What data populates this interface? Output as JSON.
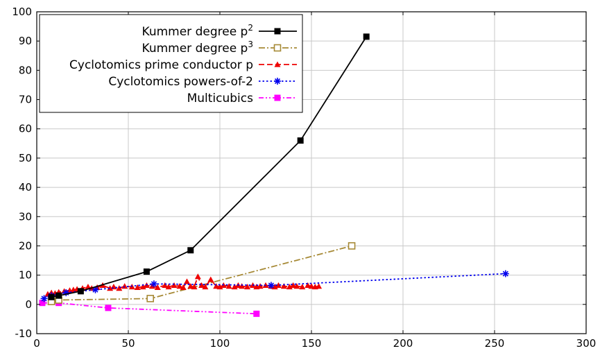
{
  "chart_data": {
    "type": "line",
    "title": "",
    "xlabel": "",
    "ylabel": "",
    "xlim": [
      0,
      300
    ],
    "ylim": [
      -10,
      100
    ],
    "xticks": [
      0,
      50,
      100,
      150,
      200,
      250,
      300
    ],
    "yticks": [
      -10,
      0,
      10,
      20,
      30,
      40,
      50,
      60,
      70,
      80,
      90,
      100
    ],
    "grid": true,
    "legend_position": "top-left",
    "series": [
      {
        "name": "Kummer degree p",
        "name_sup": "2",
        "color": "#000000",
        "dash": "solid",
        "marker": "square-filled",
        "x": [
          8,
          12,
          24,
          60,
          84,
          144,
          180
        ],
        "y": [
          2.5,
          3.0,
          4.5,
          11.2,
          18.5,
          56.0,
          91.5
        ]
      },
      {
        "name": "Kummer degree p",
        "name_sup": "3",
        "color": "#a68935",
        "dash": "dashdot",
        "marker": "square-open",
        "x": [
          8,
          12,
          62,
          172
        ],
        "y": [
          1.0,
          1.5,
          2.0,
          20.0
        ]
      },
      {
        "name": "Cyclotomics prime conductor p",
        "name_sup": "",
        "color": "#ee0000",
        "dash": "dashed",
        "marker": "triangle",
        "x": [
          6,
          8,
          10,
          12,
          15,
          18,
          20,
          22,
          25,
          28,
          30,
          33,
          36,
          40,
          42,
          45,
          48,
          52,
          55,
          58,
          60,
          63,
          66,
          70,
          72,
          75,
          78,
          80,
          82,
          84,
          86,
          88,
          90,
          92,
          95,
          98,
          100,
          102,
          105,
          108,
          110,
          112,
          115,
          118,
          120,
          122,
          125,
          128,
          130,
          132,
          135,
          138,
          140,
          142,
          145,
          148,
          150,
          152,
          154
        ],
        "y": [
          3.5,
          4.0,
          3.8,
          4.2,
          4.5,
          4.8,
          5.0,
          5.2,
          5.5,
          6.0,
          5.5,
          5.8,
          6.5,
          5.5,
          6.0,
          5.5,
          6.2,
          6.0,
          5.8,
          6.0,
          6.5,
          6.2,
          5.8,
          6.5,
          6.0,
          6.5,
          6.2,
          5.8,
          7.8,
          6.2,
          6.0,
          9.5,
          6.5,
          6.0,
          8.5,
          6.2,
          6.0,
          6.5,
          6.2,
          6.0,
          6.5,
          6.2,
          6.0,
          6.5,
          6.0,
          6.2,
          6.5,
          6.2,
          6.0,
          6.5,
          6.2,
          6.0,
          6.5,
          6.2,
          6.0,
          6.5,
          6.2,
          6.0,
          6.2
        ]
      },
      {
        "name": "Cyclotomics powers-of-2",
        "name_sup": "",
        "color": "#0000ee",
        "dash": "dotted",
        "marker": "star",
        "x": [
          4,
          8,
          16,
          32,
          64,
          128,
          256
        ],
        "y": [
          2.0,
          3.0,
          4.0,
          5.0,
          7.0,
          6.5,
          10.5
        ]
      },
      {
        "name": "Multicubics",
        "name_sup": "",
        "color": "#ff00ff",
        "dash": "dashdotdot",
        "marker": "square-filled",
        "x": [
          3,
          12,
          39,
          120
        ],
        "y": [
          0.5,
          0.5,
          -1.2,
          -3.2
        ]
      }
    ]
  }
}
